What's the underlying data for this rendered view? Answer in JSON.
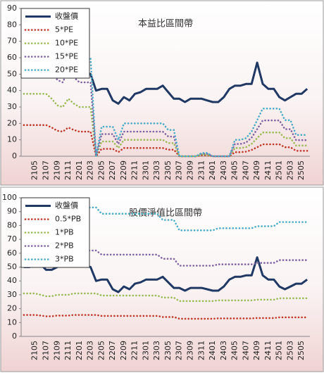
{
  "chart_data": [
    {
      "type": "line",
      "title": "本益比區間帶",
      "categories": [
        null,
        null,
        "2105",
        null,
        "2107",
        null,
        "2109",
        null,
        "2111",
        null,
        "2201",
        null,
        "2203",
        null,
        "2205",
        null,
        "2207",
        null,
        "2209",
        null,
        "2211",
        null,
        "2301",
        null,
        "2303",
        null,
        "2305",
        null,
        "2307",
        null,
        "2309",
        null,
        "2311",
        null,
        "2401",
        null,
        "2403",
        null,
        "2405",
        null,
        "2407",
        null,
        "2409",
        null,
        "2411",
        null,
        "2501",
        null,
        "2503",
        null,
        "2505",
        null
      ],
      "ylim": [
        0,
        90
      ],
      "yticks": [
        0,
        10,
        20,
        30,
        40,
        50,
        60,
        70,
        80,
        90
      ],
      "legend": "upper left",
      "series": [
        {
          "name": "收盤價",
          "color": "#1f3864",
          "style": "solid",
          "values": [
            50,
            50,
            53,
            52,
            48,
            48,
            50,
            60,
            75,
            70,
            62,
            51,
            50,
            40,
            41,
            41,
            34,
            32,
            36,
            34,
            38,
            39,
            41,
            41,
            41,
            43,
            39,
            35,
            35,
            33,
            35,
            35,
            35,
            34,
            33,
            33,
            36,
            41,
            43,
            43,
            44,
            44,
            57,
            44,
            41,
            41,
            36,
            34,
            36,
            38,
            38,
            41
          ]
        },
        {
          "name": "5*PE",
          "color": "#c0392b",
          "style": "dotted",
          "values": [
            19,
            19,
            19,
            19,
            19,
            17.5,
            15.5,
            15,
            17.5,
            16,
            15,
            15,
            15,
            0,
            4.5,
            4.5,
            4.5,
            2.5,
            5,
            5,
            5,
            5,
            5,
            5,
            5,
            5,
            4,
            4,
            0,
            0,
            0,
            0,
            0.5,
            0.5,
            0,
            0,
            0,
            0,
            2.5,
            2.5,
            2.8,
            3.8,
            5.5,
            7.3,
            7.3,
            7.3,
            7.3,
            5.5,
            5.5,
            3.3,
            3.3,
            3.3
          ]
        },
        {
          "name": "10*PE",
          "color": "#9bbb59",
          "style": "dotted",
          "values": [
            38,
            38,
            38,
            38,
            38,
            35,
            31,
            30,
            35,
            32,
            30,
            30,
            30,
            0,
            9,
            9,
            9,
            5,
            10,
            10,
            10,
            10,
            10,
            10,
            10,
            10,
            8,
            8,
            0,
            0,
            0,
            0,
            1,
            1,
            0,
            0,
            0,
            0,
            5,
            5,
            5.5,
            7.5,
            11,
            14.5,
            14.5,
            14.5,
            14.5,
            11,
            11,
            6.5,
            6.5,
            6.5
          ]
        },
        {
          "name": "15*PE",
          "color": "#8064a2",
          "style": "dotted",
          "values": [
            57,
            57,
            57,
            57,
            57,
            52.5,
            46.5,
            45,
            52.5,
            48,
            45,
            45,
            45,
            0,
            13.5,
            13.5,
            13.5,
            7.5,
            15,
            15,
            15,
            15,
            15,
            15,
            15,
            15,
            12,
            12,
            0,
            0,
            0,
            0,
            1.5,
            1.5,
            0,
            0,
            0,
            0,
            7.5,
            7.5,
            8.3,
            11.3,
            16.5,
            21.8,
            21.8,
            21.8,
            21.8,
            16.5,
            16.5,
            9.8,
            9.8,
            9.8
          ]
        },
        {
          "name": "20*PE",
          "color": "#4bacc6",
          "style": "dotted",
          "values": [
            76,
            76,
            76,
            76,
            76,
            70,
            62,
            60,
            70,
            64,
            60,
            60,
            60,
            0,
            18,
            18,
            18,
            10,
            20,
            20,
            20,
            20,
            20,
            20,
            20,
            20,
            16,
            16,
            0,
            0,
            0,
            0,
            2,
            2,
            0,
            0,
            0,
            0,
            10,
            10,
            11,
            15,
            22,
            29,
            29,
            29,
            29,
            22,
            22,
            13,
            13,
            13
          ]
        }
      ]
    },
    {
      "type": "line",
      "title": "股價淨值比區間帶",
      "categories": [
        null,
        null,
        "2105",
        null,
        "2107",
        null,
        "2109",
        null,
        "2111",
        null,
        "2201",
        null,
        "2203",
        null,
        "2205",
        null,
        "2207",
        null,
        "2209",
        null,
        "2211",
        null,
        "2301",
        null,
        "2303",
        null,
        "2305",
        null,
        "2307",
        null,
        "2309",
        null,
        "2311",
        null,
        "2401",
        null,
        "2403",
        null,
        "2405",
        null,
        "2407",
        null,
        "2409",
        null,
        "2411",
        null,
        "2501",
        null,
        "2503",
        null,
        "2505",
        null
      ],
      "ylim": [
        0,
        100
      ],
      "yticks": [
        0,
        10,
        20,
        30,
        40,
        50,
        60,
        70,
        80,
        90,
        100
      ],
      "legend": "upper left",
      "series": [
        {
          "name": "收盤價",
          "color": "#1f3864",
          "style": "solid",
          "values": [
            50,
            50,
            53,
            52,
            48,
            48,
            50,
            60,
            75,
            70,
            62,
            51,
            50,
            40,
            41,
            41,
            34,
            32,
            36,
            34,
            38,
            39,
            41,
            41,
            41,
            43,
            39,
            35,
            35,
            33,
            35,
            35,
            35,
            34,
            33,
            33,
            36,
            41,
            43,
            43,
            44,
            44,
            57,
            44,
            41,
            41,
            36,
            34,
            36,
            38,
            38,
            41
          ]
        },
        {
          "name": "0.5*PB",
          "color": "#c0392b",
          "style": "dotted",
          "values": [
            15.5,
            15.5,
            15.5,
            15,
            14.5,
            14.5,
            15,
            15,
            15,
            15.5,
            15.5,
            15.5,
            15.5,
            15.5,
            14.75,
            14.75,
            14.75,
            14.75,
            14.75,
            14.75,
            14.75,
            14.75,
            14.75,
            14.75,
            14.75,
            14,
            14,
            14,
            12.75,
            12.75,
            12.75,
            12.75,
            12.75,
            12.75,
            12.75,
            13,
            13,
            13,
            13,
            13,
            13,
            13,
            13.25,
            13.25,
            13.25,
            13.25,
            13.75,
            13.75,
            13.75,
            13.75,
            13.75,
            13.75
          ]
        },
        {
          "name": "1*PB",
          "color": "#9bbb59",
          "style": "dotted",
          "values": [
            31,
            31,
            31,
            30,
            29,
            29,
            30,
            30,
            30,
            31,
            31,
            31,
            31,
            31,
            29.5,
            29.5,
            29.5,
            29.5,
            29.5,
            29.5,
            29.5,
            29.5,
            29.5,
            29.5,
            29.5,
            28,
            28,
            28,
            25.5,
            25.5,
            25.5,
            25.5,
            25.5,
            25.5,
            25.5,
            26,
            26,
            26,
            26,
            26,
            26,
            26,
            26.5,
            26.5,
            26.5,
            26.5,
            27.5,
            27.5,
            27.5,
            27.5,
            27.5,
            27.5
          ]
        },
        {
          "name": "2*PB",
          "color": "#8064a2",
          "style": "dotted",
          "values": [
            62,
            62,
            62,
            60,
            58,
            58,
            60,
            60,
            60,
            62,
            62,
            62,
            62,
            62,
            59,
            59,
            59,
            59,
            59,
            59,
            59,
            59,
            59,
            59,
            59,
            56,
            56,
            56,
            51,
            51,
            51,
            51,
            51,
            51,
            51,
            52,
            52,
            52,
            52,
            52,
            52,
            52,
            53,
            53,
            53,
            53,
            55,
            55,
            55,
            55,
            55,
            55
          ]
        },
        {
          "name": "3*PB",
          "color": "#4bacc6",
          "style": "dotted",
          "values": [
            93,
            93,
            93,
            90,
            87,
            87,
            90,
            90,
            90,
            93,
            93,
            93,
            93,
            93,
            88.5,
            88.5,
            88.5,
            88.5,
            88.5,
            88.5,
            88.5,
            88.5,
            88.5,
            88.5,
            88.5,
            84,
            84,
            84,
            76.5,
            76.5,
            76.5,
            76.5,
            76.5,
            76.5,
            76.5,
            78,
            78,
            78,
            78,
            78,
            78,
            78,
            79.5,
            79.5,
            79.5,
            79.5,
            82.5,
            82.5,
            82.5,
            82.5,
            82.5,
            82.5
          ]
        }
      ]
    }
  ]
}
